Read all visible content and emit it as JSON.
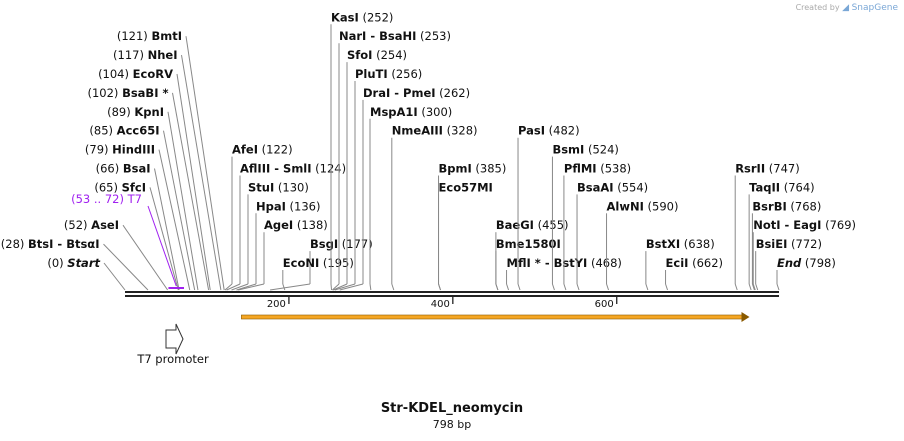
{
  "credit": {
    "prefix": "Created by",
    "brand": "SnapGene"
  },
  "title": "Str-KDEL_neomycin",
  "length_label": "798 bp",
  "seq_length": 798,
  "ruler_ticks": [
    {
      "pos": 200,
      "label": "200"
    },
    {
      "pos": 400,
      "label": "400"
    },
    {
      "pos": 600,
      "label": "600"
    }
  ],
  "sites": [
    {
      "pos": "(0)",
      "name": "Start",
      "italic": true,
      "bp": 0,
      "row": 0,
      "side": "L"
    },
    {
      "pos": "(28)",
      "name": "BtsI - BtsαI",
      "bp": 28,
      "row": 1,
      "side": "L"
    },
    {
      "pos": "(52)",
      "name": "AseI",
      "bp": 52,
      "row": 2,
      "side": "L"
    },
    {
      "pos": "(65)",
      "name": "SfcI",
      "bp": 65,
      "row": 4,
      "side": "L"
    },
    {
      "pos": "(66)",
      "name": "BsaI",
      "bp": 66,
      "row": 5,
      "side": "L"
    },
    {
      "pos": "(79)",
      "name": "HindIII",
      "bp": 79,
      "row": 6,
      "side": "L"
    },
    {
      "pos": "(85)",
      "name": "Acc65I",
      "bp": 85,
      "row": 7,
      "side": "L"
    },
    {
      "pos": "(89)",
      "name": "KpnI",
      "bp": 89,
      "row": 8,
      "side": "L"
    },
    {
      "pos": "(102)",
      "name": "BsaBI *",
      "bp": 102,
      "row": 9,
      "side": "L"
    },
    {
      "pos": "(104)",
      "name": "EcoRV",
      "bp": 104,
      "row": 10,
      "side": "L"
    },
    {
      "pos": "(117)",
      "name": "NheI",
      "bp": 117,
      "row": 11,
      "side": "L"
    },
    {
      "pos": "(121)",
      "name": "BmtI",
      "bp": 121,
      "row": 12,
      "side": "L"
    },
    {
      "pos": "(122)",
      "name": "AfeI",
      "bp": 122,
      "row": 6,
      "side": "R"
    },
    {
      "pos": "(124)",
      "name": "AflIII - SmlI",
      "bp": 124,
      "row": 5,
      "side": "R"
    },
    {
      "pos": "(130)",
      "name": "StuI",
      "bp": 130,
      "row": 4,
      "side": "R"
    },
    {
      "pos": "(136)",
      "name": "HpaI",
      "bp": 136,
      "row": 3,
      "side": "R"
    },
    {
      "pos": "(138)",
      "name": "AgeI",
      "bp": 138,
      "row": 2,
      "side": "R"
    },
    {
      "pos": "(177)",
      "name": "BsgI",
      "bp": 177,
      "row": 1,
      "side": "R"
    },
    {
      "pos": "(195)",
      "name": "EcoNI",
      "bp": 195,
      "row": 0,
      "side": "R"
    },
    {
      "pos": "(252)",
      "name": "KasI",
      "bp": 252,
      "row": 13,
      "side": "R"
    },
    {
      "pos": "(253)",
      "name": "NarI - BsaHI",
      "bp": 253,
      "row": 12,
      "side": "R"
    },
    {
      "pos": "(254)",
      "name": "SfoI",
      "bp": 254,
      "row": 11,
      "side": "R"
    },
    {
      "pos": "(256)",
      "name": "PluTI",
      "bp": 256,
      "row": 10,
      "side": "R"
    },
    {
      "pos": "(262)",
      "name": "DraI - PmeI",
      "bp": 262,
      "row": 9,
      "side": "R"
    },
    {
      "pos": "(300)",
      "name": "MspA1I",
      "bp": 300,
      "row": 8,
      "side": "R"
    },
    {
      "pos": "(328)",
      "name": "NmeAIII",
      "bp": 328,
      "row": 7,
      "side": "R"
    },
    {
      "pos": "(385)",
      "name": "BpmI",
      "bp": 385,
      "row": 5,
      "side": "R"
    },
    {
      "pos": "",
      "name": "Eco57MI",
      "bp": 385,
      "row": 4,
      "side": "R"
    },
    {
      "pos": "(455)",
      "name": "BaeGI",
      "bp": 455,
      "row": 2,
      "side": "R"
    },
    {
      "pos": "",
      "name": "Bme1580I",
      "bp": 455,
      "row": 1,
      "side": "R"
    },
    {
      "pos": "(468)",
      "name": "MflI * - BstYI",
      "bp": 468,
      "row": 0,
      "side": "R"
    },
    {
      "pos": "(482)",
      "name": "PasI",
      "bp": 482,
      "row": 7,
      "side": "R"
    },
    {
      "pos": "(524)",
      "name": "BsmI",
      "bp": 524,
      "row": 6,
      "side": "R"
    },
    {
      "pos": "(538)",
      "name": "PflMI",
      "bp": 538,
      "row": 5,
      "side": "R"
    },
    {
      "pos": "(554)",
      "name": "BsaAI",
      "bp": 554,
      "row": 4,
      "side": "R"
    },
    {
      "pos": "(590)",
      "name": "AlwNI",
      "bp": 590,
      "row": 3,
      "side": "R"
    },
    {
      "pos": "(638)",
      "name": "BstXI",
      "bp": 638,
      "row": 1,
      "side": "R"
    },
    {
      "pos": "(662)",
      "name": "EciI",
      "bp": 662,
      "row": 0,
      "side": "R"
    },
    {
      "pos": "(747)",
      "name": "RsrII",
      "bp": 747,
      "row": 5,
      "side": "R"
    },
    {
      "pos": "(764)",
      "name": "TaqII",
      "bp": 764,
      "row": 4,
      "side": "R"
    },
    {
      "pos": "(768)",
      "name": "BsrBI",
      "bp": 768,
      "row": 3,
      "side": "R"
    },
    {
      "pos": "(769)",
      "name": "NotI - EagI",
      "bp": 769,
      "row": 2,
      "side": "R"
    },
    {
      "pos": "(772)",
      "name": "BsiEI",
      "bp": 772,
      "row": 1,
      "side": "R"
    },
    {
      "pos": "(798)",
      "name": "End",
      "italic": true,
      "bp": 798,
      "row": 0,
      "side": "R"
    }
  ],
  "features": [
    {
      "name": "T7",
      "range": "(53 .. 72)",
      "start": 53,
      "end": 72,
      "color": "#a020f0"
    }
  ],
  "orf": {
    "start": 142,
    "end": 762,
    "color": "#f5a623"
  },
  "promoter": {
    "label": "T7 promoter",
    "start": 53,
    "end": 72
  }
}
